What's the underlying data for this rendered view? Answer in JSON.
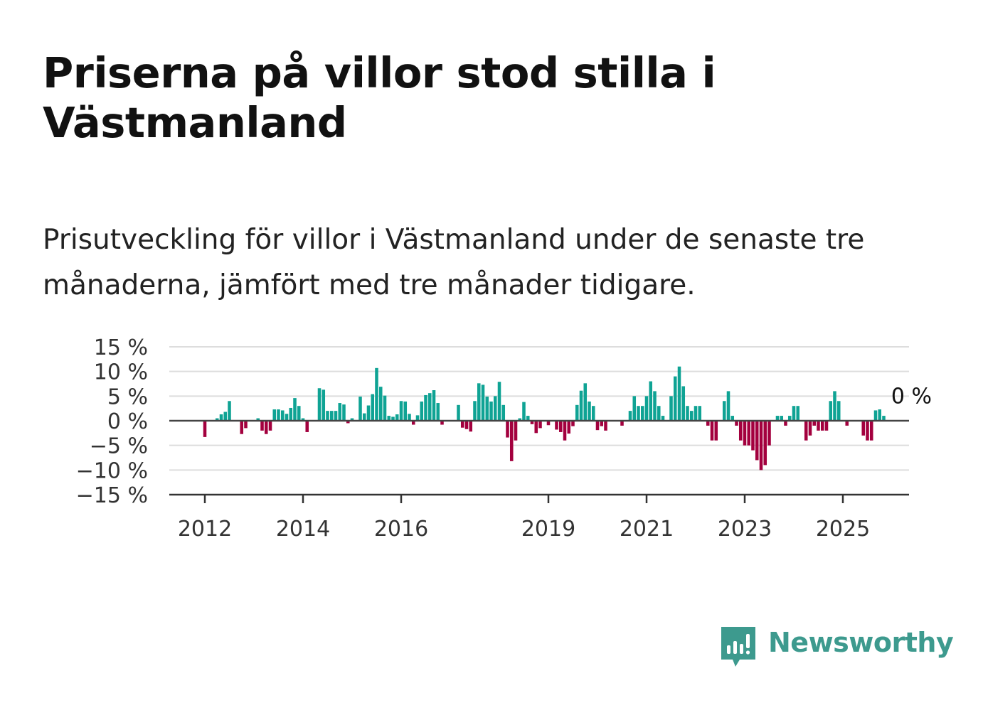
{
  "header": {
    "title": "Priserna på villor stod stilla i Västmanland",
    "subtitle": "Prisutveckling för villor i Västmanland under de senaste tre månaderna, jämfört med tre månader tidigare."
  },
  "brand": {
    "name": "Newsworthy",
    "color": "#3d9a8e",
    "icon": "bar-chart-speech-bubble-icon"
  },
  "chart_data": {
    "type": "bar",
    "ylim": [
      -15,
      15
    ],
    "yticks": [
      {
        "value": 15,
        "label": "15 %"
      },
      {
        "value": 10,
        "label": "10 %"
      },
      {
        "value": 5,
        "label": "5 %"
      },
      {
        "value": 0,
        "label": "0 %"
      },
      {
        "value": -5,
        "label": "−5 %"
      },
      {
        "value": -10,
        "label": "−10 %"
      },
      {
        "value": -15,
        "label": "−15 %"
      }
    ],
    "xticks": [
      {
        "month_index": 0,
        "label": "2012"
      },
      {
        "month_index": 24,
        "label": "2014"
      },
      {
        "month_index": 48,
        "label": "2016"
      },
      {
        "month_index": 84,
        "label": "2019"
      },
      {
        "month_index": 108,
        "label": "2021"
      },
      {
        "month_index": 132,
        "label": "2023"
      },
      {
        "month_index": 156,
        "label": "2025"
      }
    ],
    "grid": true,
    "colors": {
      "positive": "#0fa394",
      "negative": "#a3003e"
    },
    "annotation": {
      "text": "0 %",
      "month_index": 162
    },
    "values": [
      -3.3,
      0,
      0,
      0.5,
      1.3,
      1.8,
      4,
      0,
      0,
      -2.7,
      -1.5,
      0,
      0,
      0.5,
      -2,
      -2.7,
      -2,
      2.3,
      2.3,
      2.1,
      1.4,
      2.6,
      4.6,
      3,
      0.5,
      -2.3,
      0,
      0,
      6.6,
      6.3,
      2,
      2,
      2,
      3.6,
      3.3,
      -0.5,
      0.5,
      0,
      4.9,
      1.5,
      3.1,
      5.4,
      10.7,
      6.9,
      5.1,
      1,
      0.8,
      1.3,
      4,
      3.9,
      1.4,
      -0.8,
      1.1,
      3.9,
      5.2,
      5.6,
      6.2,
      3.6,
      -0.8,
      0,
      0,
      0,
      3.2,
      -1.4,
      -1.7,
      -2.2,
      4,
      7.6,
      7.3,
      4.9,
      3.9,
      5,
      7.9,
      3.2,
      -3.4,
      -8.2,
      -4,
      0.5,
      3.8,
      1,
      -0.7,
      -2.5,
      -1.5,
      0,
      -0.9,
      0,
      -1.8,
      -2.3,
      -4,
      -2.6,
      -1.1,
      3.2,
      6.1,
      7.6,
      3.9,
      3,
      -1.9,
      -1.1,
      -2,
      0,
      0,
      0,
      -1,
      0,
      2,
      5,
      3,
      3,
      5,
      8,
      6,
      3,
      1,
      0,
      5,
      9,
      11,
      7,
      3,
      2,
      3,
      3,
      0,
      -1,
      -4,
      -4,
      0,
      4,
      6,
      1,
      -1,
      -4,
      -5,
      -5,
      -6,
      -8,
      -10,
      -9,
      -5,
      0,
      1,
      1,
      -1,
      1,
      3,
      3,
      0,
      -4,
      -3,
      -1,
      -2,
      -2,
      -2,
      4,
      6,
      4,
      0,
      -1,
      0,
      0,
      0,
      -3,
      -4,
      -4,
      2.1,
      2.3,
      1
    ]
  }
}
